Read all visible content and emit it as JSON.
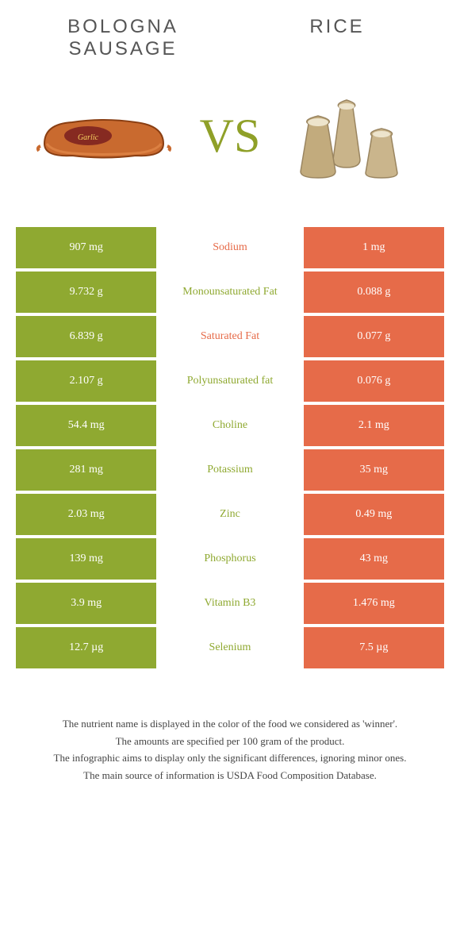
{
  "header": {
    "left": "BOLOGNA SAUSAGE",
    "right": "RICE"
  },
  "vs": "VS",
  "colors": {
    "green": "#8fa931",
    "orange": "#e66b49",
    "background": "#ffffff",
    "text": "#333333",
    "footer_text": "#444444",
    "header_text": "#555555"
  },
  "rows": [
    {
      "left": "907 mg",
      "mid": "Sodium",
      "right": "1 mg",
      "winner": "orange"
    },
    {
      "left": "9.732 g",
      "mid": "Monounsaturated Fat",
      "right": "0.088 g",
      "winner": "green"
    },
    {
      "left": "6.839 g",
      "mid": "Saturated Fat",
      "right": "0.077 g",
      "winner": "orange"
    },
    {
      "left": "2.107 g",
      "mid": "Polyunsaturated fat",
      "right": "0.076 g",
      "winner": "green"
    },
    {
      "left": "54.4 mg",
      "mid": "Choline",
      "right": "2.1 mg",
      "winner": "green"
    },
    {
      "left": "281 mg",
      "mid": "Potassium",
      "right": "35 mg",
      "winner": "green"
    },
    {
      "left": "2.03 mg",
      "mid": "Zinc",
      "right": "0.49 mg",
      "winner": "green"
    },
    {
      "left": "139 mg",
      "mid": "Phosphorus",
      "right": "43 mg",
      "winner": "green"
    },
    {
      "left": "3.9 mg",
      "mid": "Vitamin B3",
      "right": "1.476 mg",
      "winner": "green"
    },
    {
      "left": "12.7 µg",
      "mid": "Selenium",
      "right": "7.5 µg",
      "winner": "green"
    }
  ],
  "footer": [
    "The nutrient name is displayed in the color of the food we considered as 'winner'.",
    "The amounts are specified per 100 gram of the product.",
    "The infographic aims to display only the significant differences, ignoring minor ones.",
    "The main source of information is USDA Food Composition Database."
  ]
}
